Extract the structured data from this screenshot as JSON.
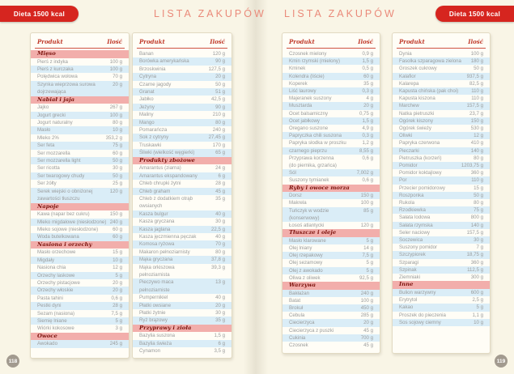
{
  "badges": {
    "left": "Dieta 1500 kcal",
    "right": "Dieta 1500 kcal"
  },
  "table_header": {
    "product": "Produkt",
    "quantity": "Ilość"
  },
  "colors": {
    "accent_red": "#d6251f",
    "title_coral": "#ea8a7a",
    "header_text": "#c03a2b",
    "category_bg": "#f2aeab",
    "category_text": "#7d140e",
    "row_alt": "#daedf7"
  },
  "pages": [
    {
      "title": "LISTA ZAKUPÓW",
      "page_number": "118",
      "columns": [
        [
          {
            "category": "Mięso",
            "items": [
              [
                "Pierś z indyka",
                "100 g"
              ],
              [
                "Pierś z kurczaka",
                "100 g"
              ],
              [
                "Polędwica wołowa",
                "70 g"
              ],
              [
                "Szynka wieprzowa surowa\ndojrzewająca",
                "20 g"
              ]
            ]
          },
          {
            "category": "Nabiał i jaja",
            "items": [
              [
                "Jajko",
                "267 g"
              ],
              [
                "Jogurt grecki",
                "100 g"
              ],
              [
                "Jogurt naturalny",
                "80 g"
              ],
              [
                "Masło",
                "10 g"
              ],
              [
                "Mleko 2%",
                "353,2 g"
              ],
              [
                "Ser feta",
                "75 g"
              ],
              [
                "Ser mozzarella",
                "60 g"
              ],
              [
                "Ser mozzarella light",
                "50 g"
              ],
              [
                "Ser ricotta",
                "30 g"
              ],
              [
                "Ser twarogowy chudy",
                "50 g"
              ],
              [
                "Ser żółty",
                "25 g"
              ],
              [
                "Serek wiejski o obniżonej\nzawartości tłuszczu",
                "120 g"
              ]
            ]
          },
          {
            "category": "Napoje",
            "items": [
              [
                "Kawa (napar bez cukru)",
                "150 g"
              ],
              [
                "Mleko migdałowe (niesłodzone)",
                "240 g"
              ],
              [
                "Mleko sojowe (niesłodzone)",
                "60 g"
              ],
              [
                "Woda butelkowana",
                "60 g"
              ]
            ]
          },
          {
            "category": "Nasiona i orzechy",
            "items": [
              [
                "Masło orzechowe",
                "15 g"
              ],
              [
                "Migdały",
                "10 g"
              ],
              [
                "Nasiona chia",
                "12 g"
              ],
              [
                "Orzechy laskowe",
                "5 g"
              ],
              [
                "Orzechy pistacjowe",
                "20 g"
              ],
              [
                "Orzechy włoskie",
                "20 g"
              ],
              [
                "Pasta tahini",
                "0,6 g"
              ],
              [
                "Pestki dyni",
                "28 g"
              ],
              [
                "Sezam (nasiona)",
                "7,5 g"
              ],
              [
                "Siemię lniane",
                "5 g"
              ],
              [
                "Wiórki kokosowe",
                "3 g"
              ]
            ]
          },
          {
            "category": "Owoce",
            "items": [
              [
                "Awokado",
                "245 g"
              ]
            ]
          }
        ],
        [
          {
            "category": null,
            "items": [
              [
                "Banan",
                "120 g"
              ],
              [
                "Borówka amerykańska",
                "90 g"
              ],
              [
                "Brzoskwinia",
                "127,5 g"
              ],
              [
                "Cytryna",
                "20 g"
              ],
              [
                "Czarne jagody",
                "50 g"
              ],
              [
                "Granat",
                "51 g"
              ],
              [
                "Jabłko",
                "42,5 g"
              ],
              [
                "Jeżyny",
                "90 g"
              ],
              [
                "Maliny",
                "210 g"
              ],
              [
                "Mango",
                "80 g"
              ],
              [
                "Pomarańcza",
                "240 g"
              ],
              [
                "Sok z cytryny",
                "27,45 g"
              ],
              [
                "Truskawki",
                "170 g"
              ],
              [
                "Śliwki (wielkość węgierki)",
                "65 g"
              ]
            ]
          },
          {
            "category": "Produkty zbożowe",
            "items": [
              [
                "Amarantus (ziarna)",
                "24 g"
              ],
              [
                "Amarantus ekspandowany",
                "6 g"
              ],
              [
                "Chleb chrupki żytni",
                "28 g"
              ],
              [
                "Chleb graham",
                "45 g"
              ],
              [
                "Chleb z dodatkiem otrąb\nowsianych",
                "35 g"
              ],
              [
                "Kasza bulgur",
                "40 g"
              ],
              [
                "Kasza gryczana",
                "30 g"
              ],
              [
                "Kasza jaglana",
                "22,5 g"
              ],
              [
                "Kasza jęczmienna pęczak",
                "40 g"
              ],
              [
                "Komosa ryżowa",
                "70 g"
              ],
              [
                "Makaron pełnoziarnisty",
                "80 g"
              ],
              [
                "Mąka gryczana",
                "37,8 g"
              ],
              [
                "Mąka orkiszowa\npełnoziarnista",
                "39,3 g"
              ],
              [
                "Pieczywo maca\npełnoziarniste",
                "13 g"
              ],
              [
                "Pumpernikiel",
                "40 g"
              ],
              [
                "Płatki owsiane",
                "20 g"
              ],
              [
                "Płatki żytnie",
                "30 g"
              ],
              [
                "Ryż brązowy",
                "35 g"
              ]
            ]
          },
          {
            "category": "Przyprawy i zioła",
            "items": [
              [
                "Bazylia suszona",
                "1,5 g"
              ],
              [
                "Bazylia świeża",
                "6 g"
              ],
              [
                "Cynamon",
                "3,5 g"
              ]
            ]
          }
        ]
      ]
    },
    {
      "title": "LISTA ZAKUPÓW",
      "page_number": "119",
      "columns": [
        [
          {
            "category": null,
            "items": [
              [
                "Czosnek mielony",
                "0,9 g"
              ],
              [
                "Kmin rzymski (mielony)",
                "1,5 g"
              ],
              [
                "Kminek",
                "0,5 g"
              ],
              [
                "Kolendra (liście)",
                "60 g"
              ],
              [
                "Koperek",
                "35 g"
              ],
              [
                "Liść laurowy",
                "0,3 g"
              ],
              [
                "Majeranek suszony",
                "4 g"
              ],
              [
                "Musztarda",
                "20 g"
              ],
              [
                "Ocet balsamiczny",
                "0,75 g"
              ],
              [
                "Ocet jabłkowy",
                "1,5 g"
              ],
              [
                "Oregano suszone",
                "4,9 g"
              ],
              [
                "Papryczka chili suszona",
                "0,3 g"
              ],
              [
                "Papryka słodka w proszku",
                "1,2 g"
              ],
              [
                "czarnego pieprzu",
                "8,55 g"
              ],
              [
                "Przyprawa korzenna\n(do piernika, grzańca)",
                "0,6 g"
              ],
              [
                "Sól",
                "7,002 g"
              ],
              [
                "Suszony tymianek",
                "0,6 g"
              ]
            ]
          },
          {
            "category": "Ryby i owoce morza",
            "items": [
              [
                "Dorsz",
                "150 g"
              ],
              [
                "Makrela",
                "100 g"
              ],
              [
                "Tuńczyk w wodzie\n(konserwowy)",
                "85 g"
              ],
              [
                "Łosoś atlantycki",
                "120 g"
              ]
            ]
          },
          {
            "category": "Tłuszcze i oleje",
            "items": [
              [
                "Masło klarowane",
                "5 g"
              ],
              [
                "Olej lniany",
                "14 g"
              ],
              [
                "Olej rzepakowy",
                "7,5 g"
              ],
              [
                "Olej sezamowy",
                "5 g"
              ],
              [
                "Olej z awokado",
                "5 g"
              ],
              [
                "Oliwa z oliwek",
                "92,5 g"
              ]
            ]
          },
          {
            "category": "Warzywa",
            "items": [
              [
                "Bakłażan",
                "240 g"
              ],
              [
                "Batat",
                "100 g"
              ],
              [
                "Brokuł",
                "450 g"
              ],
              [
                "Cebula",
                "285 g"
              ],
              [
                "Ciecierzyca",
                "20 g"
              ],
              [
                "Ciecierzyca z puszki",
                "45 g"
              ],
              [
                "Cukinia",
                "700 g"
              ],
              [
                "Czosnek",
                "45 g"
              ]
            ]
          }
        ],
        [
          {
            "category": null,
            "items": [
              [
                "Dynia",
                "100 g"
              ],
              [
                "Fasolka szparagowa zielona",
                "180 g"
              ],
              [
                "Groszek cukrowy",
                "50 g"
              ],
              [
                "Kalafior",
                "937,5 g"
              ],
              [
                "Kalarepa",
                "82,5 g"
              ],
              [
                "Kapusta chińska (pak choi)",
                "110 g"
              ],
              [
                "Kapusta kiszona",
                "110 g"
              ],
              [
                "Marchew",
                "157,5 g"
              ],
              [
                "Natka pietruszki",
                "23,7 g"
              ],
              [
                "Ogórek kiszony",
                "150 g"
              ],
              [
                "Ogórek świeży",
                "530 g"
              ],
              [
                "Oliwki",
                "12 g"
              ],
              [
                "Papryka czerwona",
                "410 g"
              ],
              [
                "Pieczarki",
                "140 g"
              ],
              [
                "Pietruszka (korzeń)",
                "80 g"
              ],
              [
                "Pomidor",
                "1203,75 g"
              ],
              [
                "Pomidor koktajlowy",
                "360 g"
              ],
              [
                "Por",
                "110 g"
              ],
              [
                "Przecier pomidorowy",
                "15 g"
              ],
              [
                "Roszponka",
                "50 g"
              ],
              [
                "Rukola",
                "80 g"
              ],
              [
                "Rzodkiewka",
                "75 g"
              ],
              [
                "Sałata lodowa",
                "800 g"
              ],
              [
                "Sałata rzymska",
                "140 g"
              ],
              [
                "Seler naciowy",
                "157,5 g"
              ],
              [
                "Soczewica",
                "30 g"
              ],
              [
                "Suszony pomidor",
                "7 g"
              ],
              [
                "Szczypiorek",
                "18,75 g"
              ],
              [
                "Szparagi",
                "360 g"
              ],
              [
                "Szpinak",
                "112,5 g"
              ],
              [
                "Ziemniaki",
                "300 g"
              ]
            ]
          },
          {
            "category": "Inne",
            "items": [
              [
                "Bulion warzywny",
                "600 g"
              ],
              [
                "Erytrytol",
                "2,5 g"
              ],
              [
                "Kakao",
                "5 g"
              ],
              [
                "Proszek do pieczenia",
                "1,1 g"
              ],
              [
                "Sos sojowy ciemny",
                "10 g"
              ]
            ]
          }
        ]
      ]
    }
  ]
}
